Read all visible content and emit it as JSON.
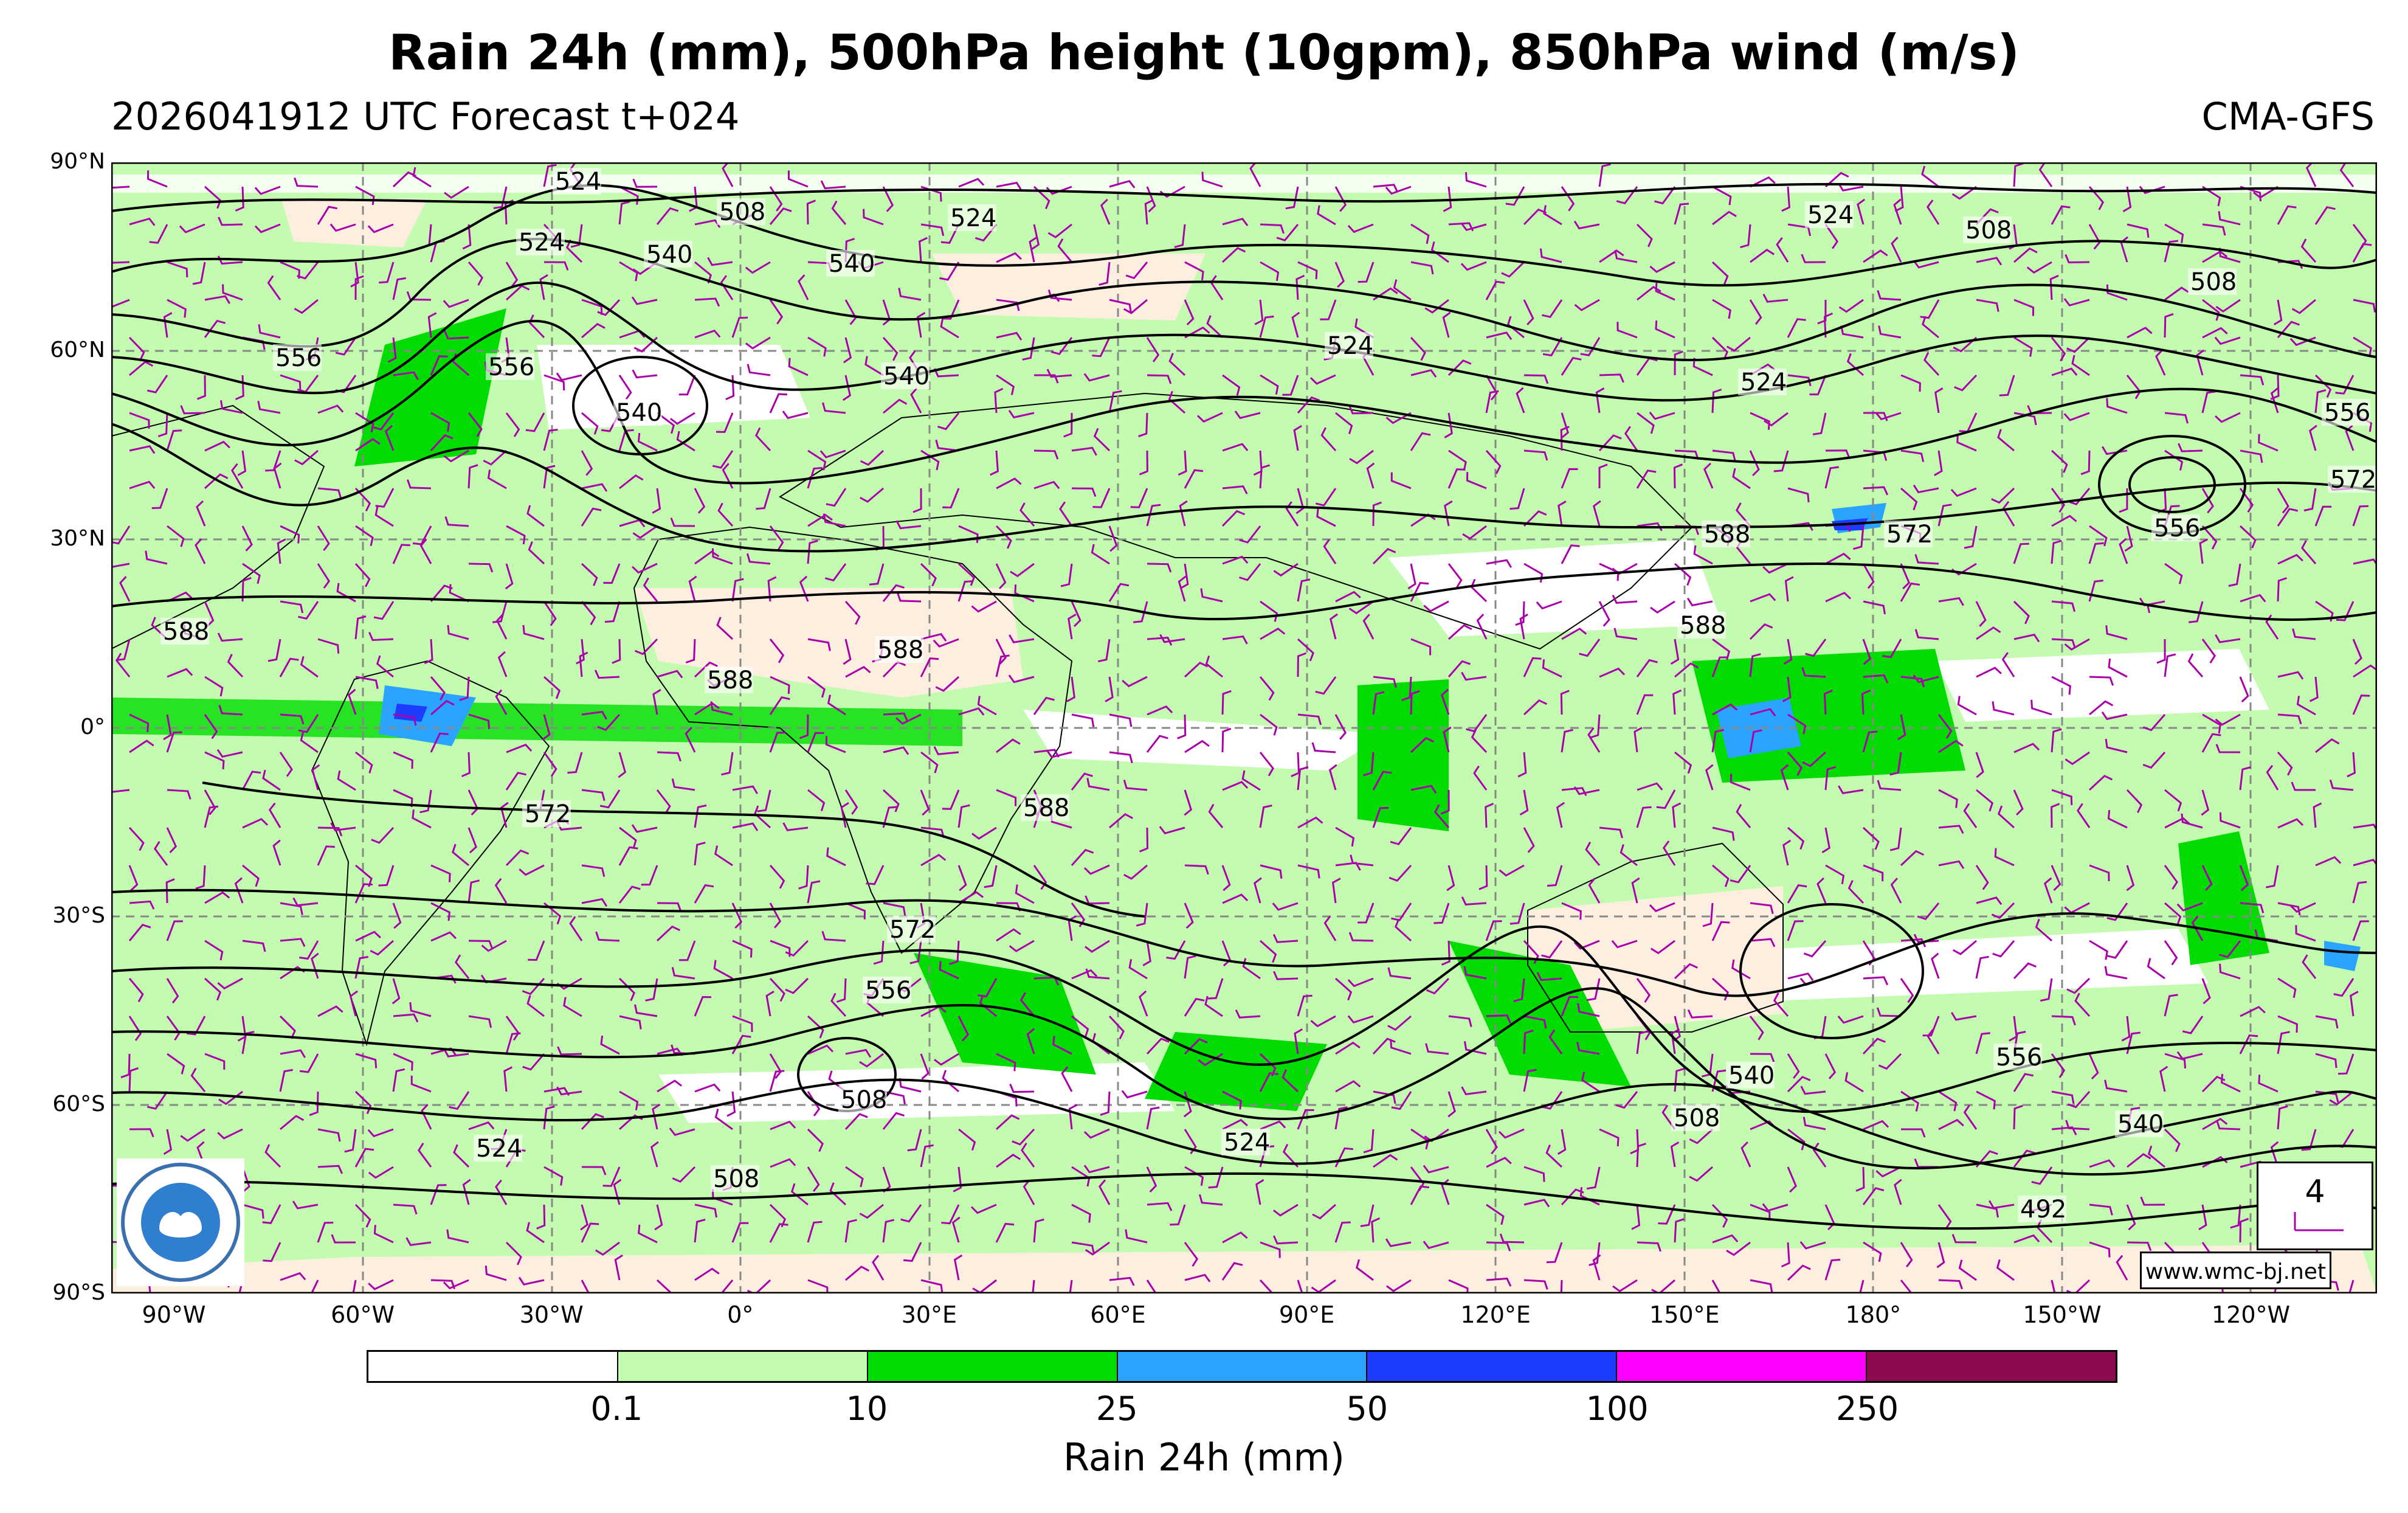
{
  "title": "Rain 24h (mm), 500hPa height (10gpm), 850hPa wind (m/s)",
  "subtitle": "2026041912 UTC Forecast t+024",
  "model": "CMA-GFS",
  "website": "www.wmc-bj.net",
  "wind_reference": "4",
  "lat_labels": [
    "90°N",
    "60°N",
    "30°N",
    "0°",
    "30°S",
    "60°S",
    "90°S"
  ],
  "lon_labels": [
    "90°W",
    "60°W",
    "30°W",
    "0°",
    "30°E",
    "60°E",
    "90°E",
    "120°E",
    "150°E",
    "180°",
    "150°W",
    "120°W"
  ],
  "colorbar": {
    "label": "Rain 24h (mm)",
    "ticks": [
      "0.1",
      "10",
      "25",
      "50",
      "100",
      "250"
    ],
    "colors": [
      "#ffffff",
      "#c3fcb0",
      "#00dc00",
      "#2aa4ff",
      "#1e3cff",
      "#ff00ff",
      "#8c0a50"
    ]
  },
  "contour_labels": [
    "524",
    "508",
    "524",
    "524",
    "540",
    "540",
    "524",
    "508",
    "508",
    "556",
    "540",
    "556",
    "540",
    "524",
    "524",
    "556",
    "572",
    "572",
    "556",
    "588",
    "588",
    "588",
    "588",
    "588",
    "588",
    "572",
    "572",
    "556",
    "556",
    "540",
    "508",
    "540",
    "524",
    "508",
    "508",
    "524",
    "492"
  ],
  "colors": {
    "contour": "#000000",
    "barb": "#aa00aa",
    "grid": "#888888",
    "land_dry": "#fdefe0"
  }
}
